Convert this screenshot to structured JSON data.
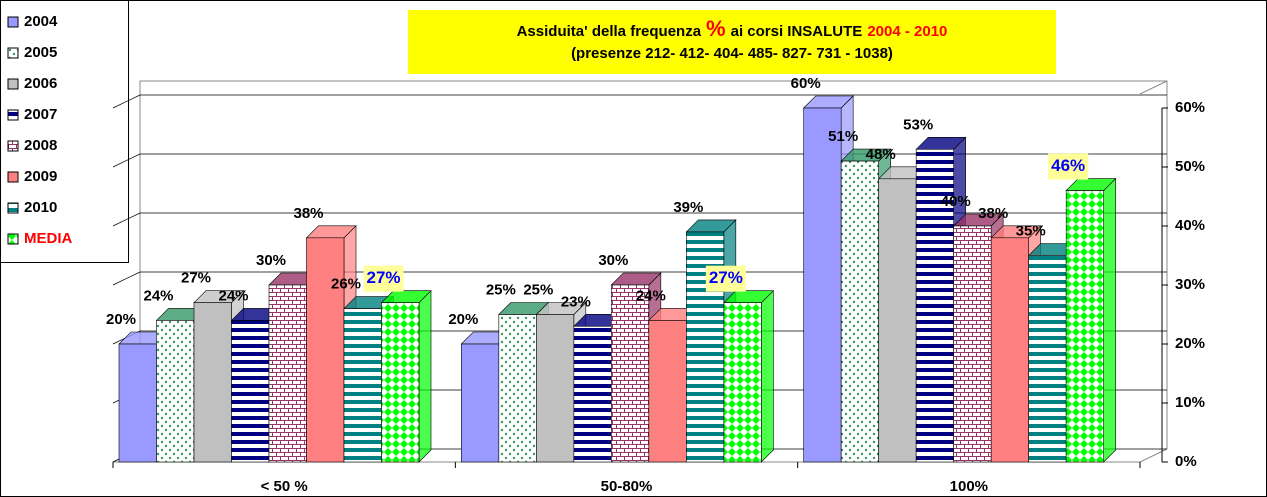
{
  "chart_data": {
    "type": "bar3d",
    "title": [
      "Assiduita' della frequenza",
      "%",
      "ai corsi INSALUTE",
      "2004 - 2010"
    ],
    "subtitle": "(presenze 212- 412- 404- 485- 827- 731 - 1038)",
    "categories": [
      "< 50 %",
      "50-80%",
      "100%"
    ],
    "ylim": [
      0,
      60
    ],
    "yticks": [
      {
        "value": 0,
        "label": "0%"
      },
      {
        "value": 10,
        "label": "10%"
      },
      {
        "value": 20,
        "label": "20%"
      },
      {
        "value": 30,
        "label": "30%"
      },
      {
        "value": 40,
        "label": "40%"
      },
      {
        "value": 50,
        "label": "50%"
      },
      {
        "value": 60,
        "label": "60%"
      }
    ],
    "grid": true,
    "legend": "left",
    "series": [
      {
        "name": "2004",
        "color": "#9999ff",
        "pattern": "solid",
        "values": [
          20,
          20,
          60
        ],
        "value_labels": [
          "20%",
          "20%",
          "60%"
        ]
      },
      {
        "name": "2005",
        "color": "#339966",
        "pattern": "dots",
        "values": [
          24,
          25,
          51
        ],
        "value_labels": [
          "24%",
          "25%",
          "51%"
        ]
      },
      {
        "name": "2006",
        "color": "#c0c0c0",
        "pattern": "solid",
        "values": [
          27,
          25,
          48
        ],
        "value_labels": [
          "27%",
          "25%",
          "48%"
        ]
      },
      {
        "name": "2007",
        "color": "#000080",
        "pattern": "hstripes",
        "values": [
          24,
          23,
          53
        ],
        "value_labels": [
          "24%",
          "23%",
          "53%"
        ]
      },
      {
        "name": "2008",
        "color": "#993366",
        "pattern": "bricks",
        "values": [
          30,
          30,
          40
        ],
        "value_labels": [
          "30%",
          "30%",
          "40%"
        ]
      },
      {
        "name": "2009",
        "color": "#ff8080",
        "pattern": "solid",
        "values": [
          38,
          24,
          38
        ],
        "value_labels": [
          "38%",
          "24%",
          "38%"
        ]
      },
      {
        "name": "2010",
        "color": "#008080",
        "pattern": "hstripes",
        "values": [
          26,
          39,
          35
        ],
        "value_labels": [
          "26%",
          "39%",
          "35%"
        ]
      },
      {
        "name": "MEDIA",
        "color": "#00ff00",
        "pattern": "diamonds",
        "values": [
          27,
          27,
          46
        ],
        "value_labels": [
          "27%",
          "27%",
          "46%"
        ],
        "label_color": "#ff0000",
        "value_label_color": "#0000ff",
        "value_label_bg": "#ffff99"
      }
    ]
  }
}
